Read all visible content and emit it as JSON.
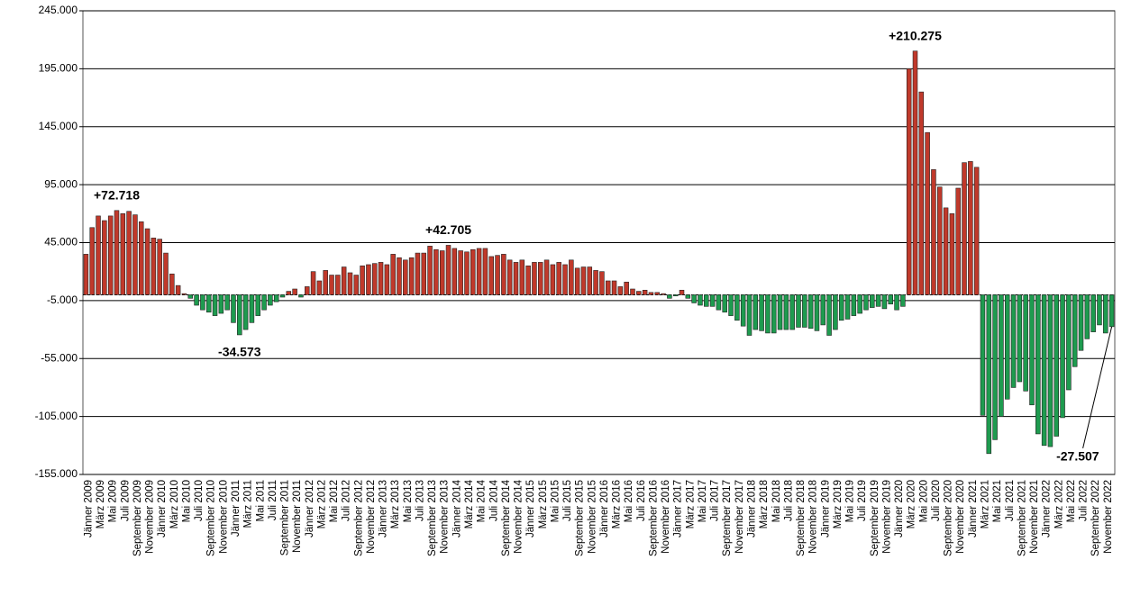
{
  "chart_data": {
    "type": "bar",
    "categories": [
      "Jänner 2009",
      null,
      "März 2009",
      null,
      "Mai 2009",
      null,
      "Juli 2009",
      null,
      "September 2009",
      null,
      "November 2009",
      null,
      "Jänner 2010",
      null,
      "März 2010",
      null,
      "Mai 2010",
      null,
      "Juli 2010",
      null,
      "September 2010",
      null,
      "November 2010",
      null,
      "Jänner 2011",
      null,
      "März 2011",
      null,
      "Mai 2011",
      null,
      "Juli 2011",
      null,
      "September 2011",
      null,
      "November 2011",
      null,
      "Jänner 2012",
      null,
      "März 2012",
      null,
      "Mai 2012",
      null,
      "Juli 2012",
      null,
      "September 2012",
      null,
      "November 2012",
      null,
      "Jänner 2013",
      null,
      "März 2013",
      null,
      "Mai 2013",
      null,
      "Juli 2013",
      null,
      "September 2013",
      null,
      "November 2013",
      null,
      "Jänner 2014",
      null,
      "März 2014",
      null,
      "Mai 2014",
      null,
      "Juli 2014",
      null,
      "September 2014",
      null,
      "November 2014",
      null,
      "Jänner 2015",
      null,
      "März 2015",
      null,
      "Mai 2015",
      null,
      "Juli 2015",
      null,
      "September 2015",
      null,
      "November 2015",
      null,
      "Jänner 2016",
      null,
      "März 2016",
      null,
      "Mai 2016",
      null,
      "Juli 2016",
      null,
      "September 2016",
      null,
      "November 2016",
      null,
      "Jänner 2017",
      null,
      "März 2017",
      null,
      "Mai 2017",
      null,
      "Juli 2017",
      null,
      "September 2017",
      null,
      "November 2017",
      null,
      "Jänner 2018",
      null,
      "März 2018",
      null,
      "Mai 2018",
      null,
      "Juli 2018",
      null,
      "September 2018",
      null,
      "November 2018",
      null,
      "Jänner 2019",
      null,
      "März 2019",
      null,
      "Mai 2019",
      null,
      "Juli 2019",
      null,
      "September 2019",
      null,
      "November 2019",
      null,
      "Jänner 2020",
      null,
      "März 2020",
      null,
      "Mai 2020",
      null,
      "Juli 2020",
      null,
      "September 2020",
      null,
      "November 2020",
      null,
      "Jänner 2021",
      null,
      "März 2021",
      null,
      "Mai 2021",
      null,
      "Juli 2021",
      null,
      "September 2021",
      null,
      "November 2021",
      null,
      "Jänner 2022",
      null,
      "März 2022",
      null,
      "Mai 2022",
      null,
      "Juli 2022",
      null,
      "September 2022",
      null,
      "November 2022",
      null
    ],
    "values": [
      35000,
      58000,
      68000,
      64000,
      68000,
      72718,
      70000,
      72000,
      69000,
      63000,
      57000,
      49000,
      48000,
      36000,
      18000,
      8000,
      1000,
      -3000,
      -9000,
      -13000,
      -15000,
      -18000,
      -16000,
      -13000,
      -24000,
      -34573,
      -30000,
      -24000,
      -18000,
      -13000,
      -9000,
      -6000,
      -2000,
      3000,
      5000,
      -2000,
      7000,
      20000,
      12000,
      21000,
      17000,
      17000,
      24000,
      19000,
      17000,
      25000,
      26000,
      27000,
      28000,
      26000,
      35000,
      32000,
      30000,
      32000,
      36000,
      36000,
      42000,
      39000,
      38000,
      42705,
      40000,
      38000,
      37000,
      39000,
      40000,
      40000,
      33000,
      34000,
      35000,
      30000,
      28000,
      30000,
      25000,
      28000,
      28000,
      30000,
      26000,
      28000,
      26000,
      30000,
      23000,
      24000,
      24000,
      21000,
      20000,
      12000,
      12000,
      7000,
      11000,
      5000,
      3000,
      4000,
      2000,
      2000,
      1000,
      -3000,
      -1000,
      4000,
      -3000,
      -7000,
      -9000,
      -10000,
      -10000,
      -13000,
      -15000,
      -18000,
      -22000,
      -27000,
      -35000,
      -30000,
      -31000,
      -33000,
      -33000,
      -30000,
      -30000,
      -30000,
      -28000,
      -28000,
      -29000,
      -31000,
      -26000,
      -35000,
      -30000,
      -22000,
      -21000,
      -18000,
      -16000,
      -13000,
      -11000,
      -10000,
      -12000,
      -8000,
      -13000,
      -10000,
      195000,
      210275,
      175000,
      140000,
      108000,
      93000,
      75000,
      70000,
      92000,
      114000,
      115000,
      110000,
      -104000,
      -137000,
      -125000,
      -105000,
      -90000,
      -80000,
      -75000,
      -83000,
      -95000,
      -120000,
      -130000,
      -131000,
      -122000,
      -106000,
      -82000,
      -62000,
      -48000,
      -38000,
      -32000,
      -26000,
      -33000,
      -27507
    ],
    "value_labels": [
      null,
      null,
      null,
      null,
      null,
      "+72.718",
      null,
      null,
      null,
      null,
      null,
      null,
      null,
      null,
      null,
      null,
      null,
      null,
      null,
      null,
      null,
      null,
      null,
      null,
      null,
      "-34.573",
      null,
      null,
      null,
      null,
      null,
      null,
      null,
      null,
      null,
      null,
      null,
      null,
      null,
      null,
      null,
      null,
      null,
      null,
      null,
      null,
      null,
      null,
      null,
      null,
      null,
      null,
      null,
      null,
      null,
      null,
      null,
      null,
      null,
      "+42.705",
      null,
      null,
      null,
      null,
      null,
      null,
      null,
      null,
      null,
      null,
      null,
      null,
      null,
      null,
      null,
      null,
      null,
      null,
      null,
      null,
      null,
      null,
      null,
      null,
      null,
      null,
      null,
      null,
      null,
      null,
      null,
      null,
      null,
      null,
      null,
      null,
      null,
      null,
      null,
      null,
      null,
      null,
      null,
      null,
      null,
      null,
      null,
      null,
      null,
      null,
      null,
      null,
      null,
      null,
      null,
      null,
      null,
      null,
      null,
      null,
      null,
      null,
      null,
      null,
      null,
      null,
      null,
      null,
      null,
      null,
      null,
      null,
      null,
      null,
      null,
      "+210.275",
      null,
      null,
      null,
      null,
      null,
      null,
      null,
      null,
      null,
      null,
      null,
      null,
      null,
      null,
      null,
      null,
      null,
      null,
      null,
      null,
      null,
      null,
      null,
      null,
      null,
      null,
      null,
      null,
      null,
      null,
      null,
      "-27.507"
    ],
    "positive_color": "#c0392b",
    "negative_color": "#1e9b4f",
    "ylim": [
      -155000,
      245000
    ],
    "yticks": [
      {
        "value": -155000,
        "label": "-155.000"
      },
      {
        "value": -105000,
        "label": "-105.000"
      },
      {
        "value": -55000,
        "label": "-55.000"
      },
      {
        "value": -5000,
        "label": "-5.000"
      },
      {
        "value": 45000,
        "label": "45.000"
      },
      {
        "value": 95000,
        "label": "95.000"
      },
      {
        "value": 145000,
        "label": "145.000"
      },
      {
        "value": 195000,
        "label": "195.000"
      },
      {
        "value": 245000,
        "label": "245.000"
      }
    ],
    "grid": true
  }
}
